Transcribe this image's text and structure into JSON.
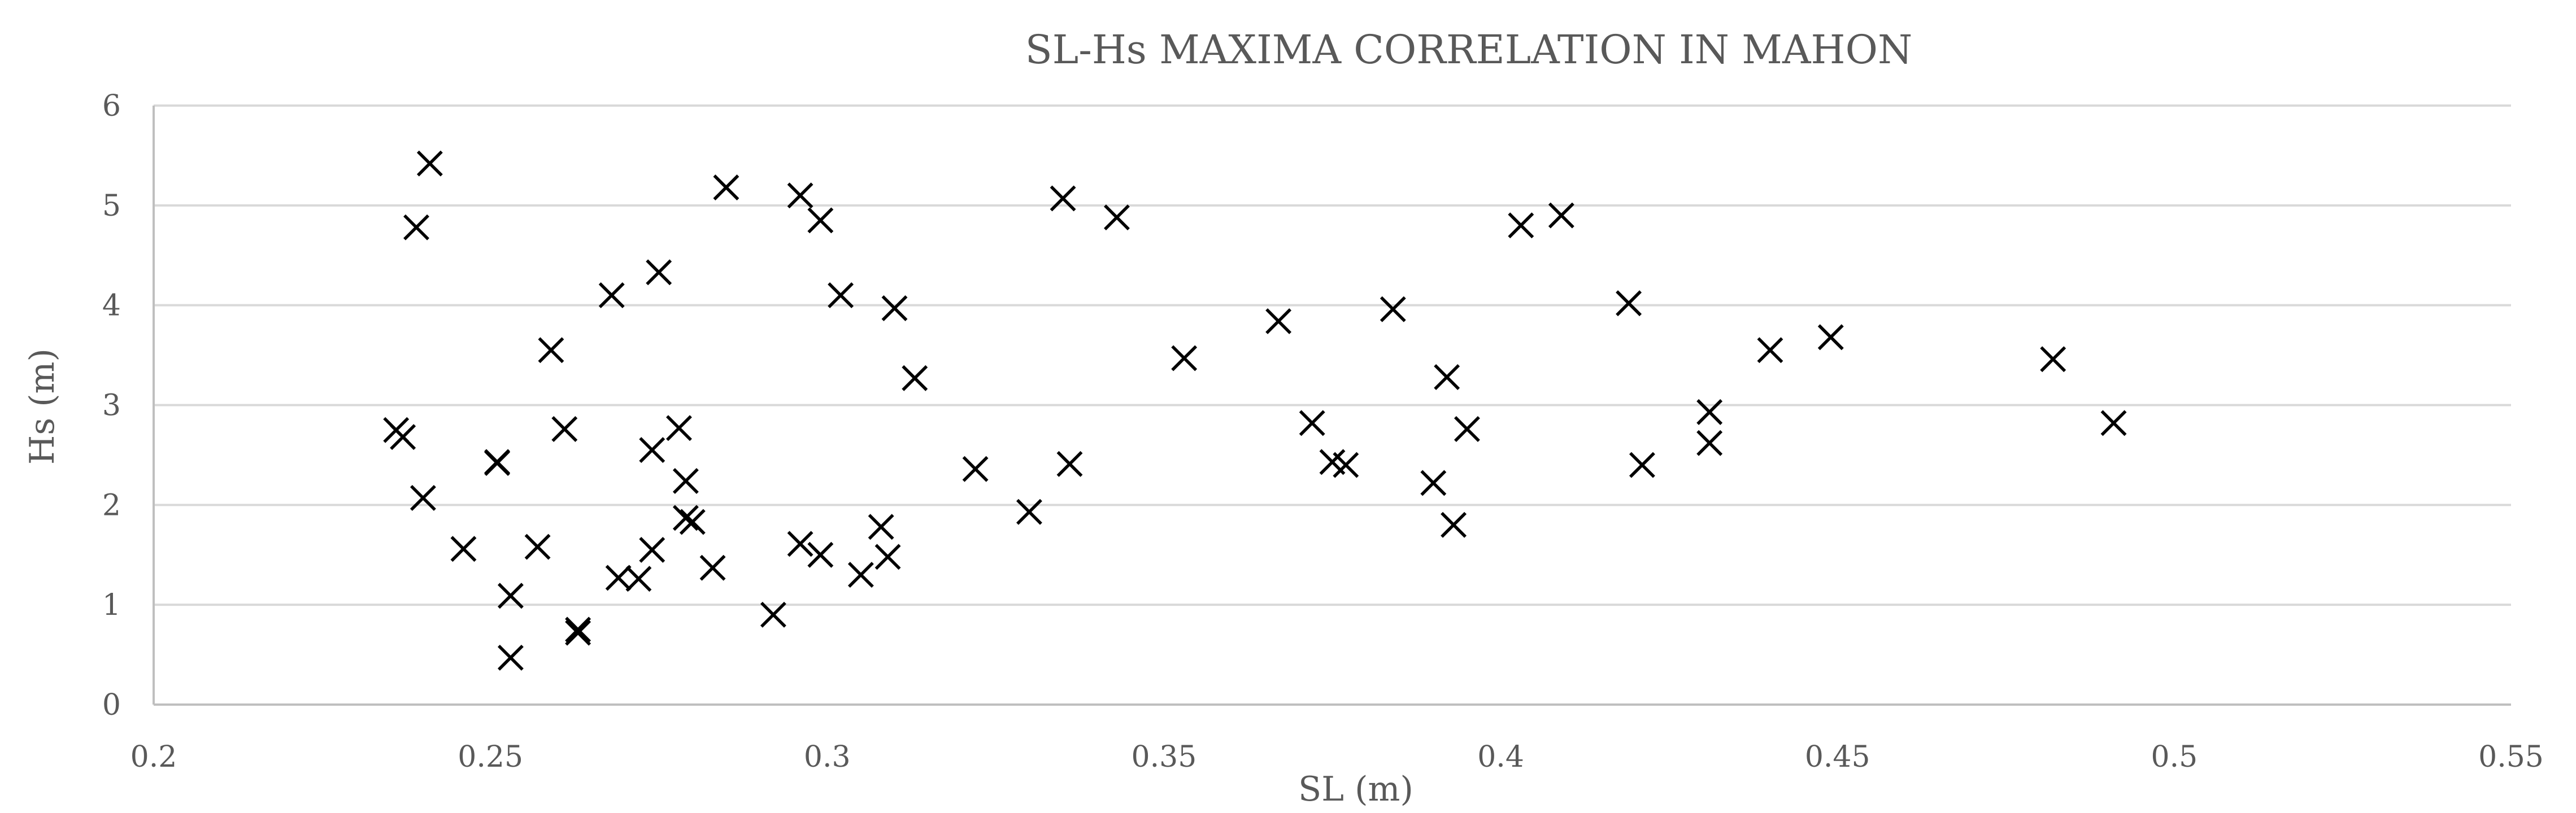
{
  "chart_data": {
    "type": "scatter",
    "title": "SL-Hs MAXIMA CORRELATION IN MAHON",
    "xlabel": "SL (m)",
    "ylabel": "Hs (m)",
    "xlim": [
      0.2,
      0.55
    ],
    "ylim": [
      0,
      6
    ],
    "xticks": [
      "0.2",
      "0.25",
      "0.3",
      "0.35",
      "0.4",
      "0.45",
      "0.5",
      "0.55"
    ],
    "yticks": [
      "0",
      "1",
      "2",
      "3",
      "4",
      "5",
      "6"
    ],
    "grid": true,
    "marker": "x",
    "marker_color": "#000000",
    "series": [
      {
        "name": "SL-Hs maxima",
        "points": [
          [
            0.241,
            5.42
          ],
          [
            0.239,
            4.78
          ],
          [
            0.236,
            2.75
          ],
          [
            0.237,
            2.68
          ],
          [
            0.24,
            2.07
          ],
          [
            0.246,
            1.56
          ],
          [
            0.251,
            2.43
          ],
          [
            0.251,
            2.42
          ],
          [
            0.253,
            1.09
          ],
          [
            0.253,
            0.47
          ],
          [
            0.257,
            1.58
          ],
          [
            0.259,
            3.55
          ],
          [
            0.261,
            2.76
          ],
          [
            0.263,
            0.75
          ],
          [
            0.263,
            0.72
          ],
          [
            0.268,
            4.1
          ],
          [
            0.269,
            1.27
          ],
          [
            0.272,
            1.26
          ],
          [
            0.274,
            2.55
          ],
          [
            0.274,
            1.55
          ],
          [
            0.275,
            4.33
          ],
          [
            0.278,
            2.77
          ],
          [
            0.279,
            2.24
          ],
          [
            0.279,
            1.87
          ],
          [
            0.28,
            1.83
          ],
          [
            0.283,
            1.37
          ],
          [
            0.285,
            5.18
          ],
          [
            0.292,
            0.9
          ],
          [
            0.296,
            5.1
          ],
          [
            0.296,
            1.61
          ],
          [
            0.299,
            4.85
          ],
          [
            0.299,
            1.5
          ],
          [
            0.302,
            4.1
          ],
          [
            0.305,
            1.3
          ],
          [
            0.308,
            1.78
          ],
          [
            0.309,
            1.48
          ],
          [
            0.31,
            3.97
          ],
          [
            0.313,
            3.27
          ],
          [
            0.322,
            2.36
          ],
          [
            0.33,
            1.93
          ],
          [
            0.335,
            5.07
          ],
          [
            0.336,
            2.41
          ],
          [
            0.343,
            4.88
          ],
          [
            0.353,
            3.47
          ],
          [
            0.367,
            3.84
          ],
          [
            0.372,
            2.82
          ],
          [
            0.375,
            2.43
          ],
          [
            0.377,
            2.4
          ],
          [
            0.384,
            3.96
          ],
          [
            0.39,
            2.22
          ],
          [
            0.392,
            3.28
          ],
          [
            0.393,
            1.8
          ],
          [
            0.395,
            2.76
          ],
          [
            0.403,
            4.8
          ],
          [
            0.409,
            4.9
          ],
          [
            0.419,
            4.02
          ],
          [
            0.421,
            2.4
          ],
          [
            0.431,
            2.93
          ],
          [
            0.431,
            2.62
          ],
          [
            0.44,
            3.55
          ],
          [
            0.449,
            3.68
          ],
          [
            0.482,
            3.46
          ],
          [
            0.491,
            2.82
          ]
        ]
      }
    ]
  }
}
